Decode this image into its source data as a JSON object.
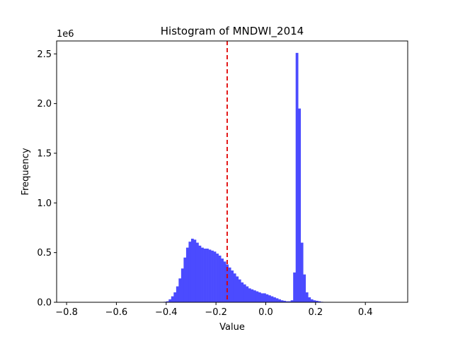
{
  "chart_data": {
    "type": "bar",
    "title": "Histogram of MNDWI_2014",
    "xlabel": "Value",
    "ylabel": "Frequency",
    "y_offset_text": "1e6",
    "xlim": [
      -0.84,
      0.57
    ],
    "ylim": [
      0,
      2.63
    ],
    "xticks": [
      -0.8,
      -0.6,
      -0.4,
      -0.2,
      0.0,
      0.2,
      0.4
    ],
    "xtick_labels": [
      "−0.8",
      "−0.6",
      "−0.4",
      "−0.2",
      "0.0",
      "0.2",
      "0.4"
    ],
    "yticks": [
      0.0,
      0.5,
      1.0,
      1.5,
      2.0,
      2.5
    ],
    "ytick_labels": [
      "0.0",
      "0.5",
      "1.0",
      "1.5",
      "2.0",
      "2.5"
    ],
    "grid": false,
    "bar_color": "#4b4bff",
    "threshold_line": {
      "x": -0.155,
      "color": "#e00000",
      "style": "dashed"
    },
    "bins": {
      "x": [
        -0.41,
        -0.4,
        -0.39,
        -0.38,
        -0.37,
        -0.36,
        -0.35,
        -0.34,
        -0.33,
        -0.32,
        -0.31,
        -0.3,
        -0.29,
        -0.28,
        -0.27,
        -0.26,
        -0.25,
        -0.24,
        -0.23,
        -0.22,
        -0.21,
        -0.2,
        -0.19,
        -0.18,
        -0.17,
        -0.16,
        -0.15,
        -0.14,
        -0.13,
        -0.12,
        -0.11,
        -0.1,
        -0.09,
        -0.08,
        -0.07,
        -0.06,
        -0.05,
        -0.04,
        -0.03,
        -0.02,
        -0.01,
        0.0,
        0.01,
        0.02,
        0.03,
        0.04,
        0.05,
        0.06,
        0.07,
        0.08,
        0.09,
        0.1,
        0.11,
        0.12,
        0.13,
        0.14,
        0.15,
        0.16,
        0.17,
        0.18,
        0.19,
        0.2,
        0.21,
        0.22,
        0.23
      ],
      "values": [
        0.005,
        0.01,
        0.03,
        0.06,
        0.1,
        0.16,
        0.24,
        0.34,
        0.45,
        0.55,
        0.61,
        0.64,
        0.63,
        0.6,
        0.57,
        0.55,
        0.54,
        0.54,
        0.53,
        0.52,
        0.51,
        0.49,
        0.47,
        0.44,
        0.41,
        0.38,
        0.35,
        0.32,
        0.29,
        0.26,
        0.23,
        0.2,
        0.18,
        0.16,
        0.14,
        0.13,
        0.12,
        0.11,
        0.1,
        0.09,
        0.09,
        0.08,
        0.07,
        0.06,
        0.05,
        0.04,
        0.03,
        0.02,
        0.015,
        0.01,
        0.01,
        0.02,
        0.3,
        2.51,
        1.95,
        0.6,
        0.28,
        0.1,
        0.05,
        0.03,
        0.02,
        0.015,
        0.01,
        0.005,
        0.003
      ]
    }
  }
}
